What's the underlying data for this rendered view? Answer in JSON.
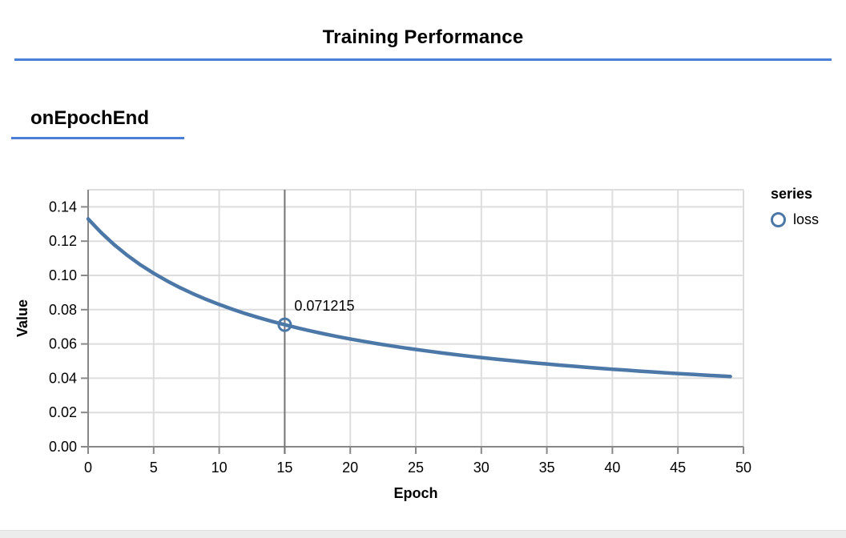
{
  "header": {
    "title": "Training Performance"
  },
  "section": {
    "heading": "onEpochEnd"
  },
  "colors": {
    "accent": "#4a7fd6",
    "line": "#4c78a8",
    "grid": "#dddddd",
    "axis": "#888888",
    "hover_rule": "#757575",
    "strip": "#ececec"
  },
  "chart_data": {
    "type": "line",
    "title": "",
    "xlabel": "Epoch",
    "ylabel": "Value",
    "xlim": [
      0,
      50
    ],
    "ylim": [
      0,
      0.15
    ],
    "grid": true,
    "legend_position": "right",
    "x_ticks": [
      0,
      5,
      10,
      15,
      20,
      25,
      30,
      35,
      40,
      45,
      50
    ],
    "x_tick_labels": [
      "0",
      "5",
      "10",
      "15",
      "20",
      "25",
      "30",
      "35",
      "40",
      "45",
      "50"
    ],
    "y_ticks": [
      0,
      0.02,
      0.04,
      0.06,
      0.08,
      0.1,
      0.12,
      0.14
    ],
    "y_tick_labels": [
      "0.00",
      "0.02",
      "0.04",
      "0.06",
      "0.08",
      "0.10",
      "0.12",
      "0.14"
    ],
    "legend": {
      "title": "series",
      "items": [
        {
          "label": "loss",
          "marker": "circle-outline"
        }
      ]
    },
    "highlighted_point": {
      "epoch": 15,
      "value": 0.071215,
      "label": "0.071215"
    },
    "series": [
      {
        "name": "loss",
        "x_start": 0,
        "x_step": 1,
        "values": [
          0.133,
          0.12489,
          0.11783,
          0.11163,
          0.10614,
          0.10124,
          0.09685,
          0.09289,
          0.08929,
          0.08602,
          0.08302,
          0.08027,
          0.07773,
          0.07539,
          0.07322,
          0.071215,
          0.06931,
          0.06756,
          0.06591,
          0.06436,
          0.06291,
          0.06154,
          0.06024,
          0.05902,
          0.05787,
          0.05677,
          0.05573,
          0.05474,
          0.0538,
          0.0529,
          0.05205,
          0.05123,
          0.05045,
          0.0497,
          0.04898,
          0.0483,
          0.04764,
          0.04701,
          0.0464,
          0.04581,
          0.04525,
          0.04471,
          0.04418,
          0.04368,
          0.04319,
          0.04272,
          0.04227,
          0.04183,
          0.0414,
          0.04099
        ]
      }
    ]
  }
}
